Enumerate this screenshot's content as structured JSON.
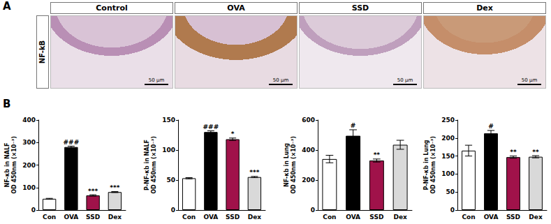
{
  "panel_labels": [
    "A",
    "B"
  ],
  "panel_a": {
    "row_label": "NF-kB",
    "images": [
      {
        "title": "Control",
        "scale_bar": "50 μm"
      },
      {
        "title": "OVA",
        "scale_bar": "50 μm"
      },
      {
        "title": "SSD",
        "scale_bar": "50 μm"
      },
      {
        "title": "Dex",
        "scale_bar": "50 μm"
      }
    ]
  },
  "chart_data": [
    {
      "type": "bar",
      "ylabel": [
        "NF-κb in NALF",
        "OD 450nm (×10⁻³)"
      ],
      "categories": [
        "Con",
        "OVA",
        "SSD",
        "Dex"
      ],
      "values": [
        50,
        280,
        65,
        80
      ],
      "errors": [
        2,
        4,
        3,
        2
      ],
      "annotations": [
        null,
        "###",
        "***",
        "***"
      ],
      "colors": [
        "#ffffff",
        "#000000",
        "#a0124a",
        "#d9d9d9"
      ],
      "ylim": [
        0,
        400
      ],
      "yticks": [
        0,
        100,
        200,
        300,
        400
      ],
      "grid": false
    },
    {
      "type": "bar",
      "ylabel": [
        "P-NF-κb in NALF",
        "OD 450nm (×10⁻³)"
      ],
      "categories": [
        "Con",
        "OVA",
        "SSD",
        "Dex"
      ],
      "values": [
        53,
        130,
        118,
        55
      ],
      "errors": [
        1,
        2,
        2,
        1
      ],
      "annotations": [
        null,
        "###",
        "*",
        "***"
      ],
      "colors": [
        "#ffffff",
        "#000000",
        "#a0124a",
        "#d9d9d9"
      ],
      "ylim": [
        0,
        150
      ],
      "yticks": [
        0,
        50,
        100,
        150
      ],
      "grid": false
    },
    {
      "type": "bar",
      "ylabel": [
        "NF-κb in Lung",
        "OD 450nm (×10⁻³)"
      ],
      "categories": [
        "Con",
        "OVA",
        "SSD",
        "Dex"
      ],
      "values": [
        340,
        495,
        330,
        435
      ],
      "errors": [
        25,
        40,
        10,
        30
      ],
      "annotations": [
        null,
        "#",
        "**",
        null
      ],
      "colors": [
        "#ffffff",
        "#000000",
        "#a0124a",
        "#d9d9d9"
      ],
      "ylim": [
        0,
        600
      ],
      "yticks": [
        0,
        200,
        400,
        600
      ],
      "grid": false
    },
    {
      "type": "bar",
      "ylabel": [
        "P-NF-κb in Lung",
        "OD 450nm (×10⁻³)"
      ],
      "categories": [
        "Con",
        "OVA",
        "SSD",
        "Dex"
      ],
      "values": [
        165,
        213,
        147,
        148
      ],
      "errors": [
        15,
        8,
        3,
        3
      ],
      "annotations": [
        null,
        "#",
        "**",
        "**"
      ],
      "colors": [
        "#ffffff",
        "#000000",
        "#a0124a",
        "#d9d9d9"
      ],
      "ylim": [
        0,
        250
      ],
      "yticks": [
        0,
        50,
        100,
        150,
        200,
        250
      ],
      "grid": false
    }
  ]
}
